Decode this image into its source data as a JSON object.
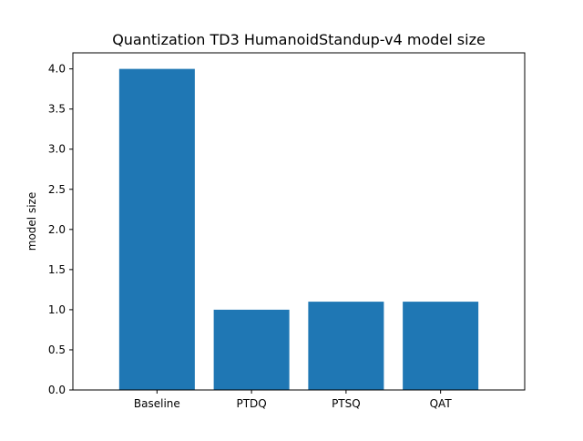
{
  "chart_data": {
    "type": "bar",
    "title": "Quantization TD3 HumanoidStandup-v4 model size",
    "xlabel": "",
    "ylabel": "model size",
    "categories": [
      "Baseline",
      "PTDQ",
      "PTSQ",
      "QAT"
    ],
    "values": [
      4.0,
      1.0,
      1.1,
      1.1
    ],
    "ylim": [
      0,
      4.2
    ],
    "yticks": [
      "0.0",
      "0.5",
      "1.0",
      "1.5",
      "2.0",
      "2.5",
      "3.0",
      "3.5",
      "4.0"
    ],
    "grid": false,
    "legend": "none",
    "bar_color": "#1f77b4"
  }
}
